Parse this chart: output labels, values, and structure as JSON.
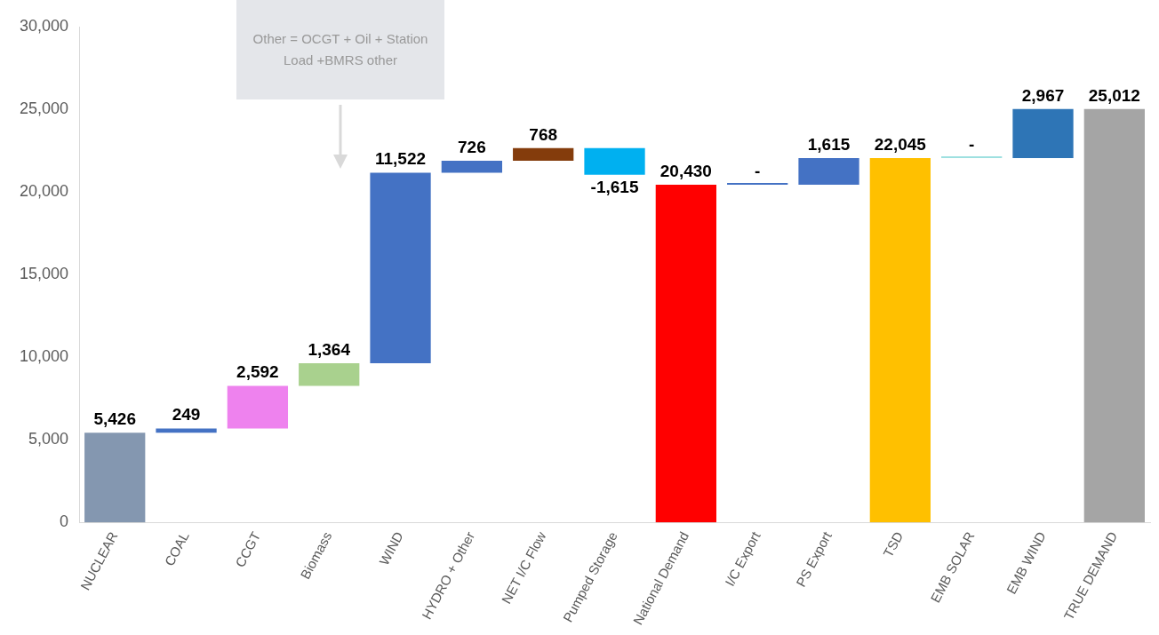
{
  "chart_data": {
    "type": "bar",
    "categories": [
      "NUCLEAR",
      "COAL",
      "CCGT",
      "Biomass",
      "WIND",
      "HYDRO + Other",
      "NET I/C Flow",
      "Pumped Storage",
      "National Demand",
      "I/C Export",
      "PS Export",
      "TSD",
      "EMB SOLAR",
      "EMB WIND",
      "TRUE DEMAND"
    ],
    "values": [
      5426,
      249,
      2592,
      1364,
      11522,
      726,
      768,
      -1615,
      20430,
      0,
      1615,
      22045,
      0,
      2967,
      25012
    ],
    "base": [
      0,
      5426,
      5675,
      8267,
      9631,
      21153,
      21879,
      22647,
      0,
      20430,
      20430,
      0,
      22045,
      22045,
      0
    ],
    "colors": [
      "#8497b0",
      "#4472c4",
      "#ee82ee",
      "#a9d18e",
      "#4472c4",
      "#4472c4",
      "#843c0c",
      "#00b0f0",
      "#ff0000",
      "#4472c4",
      "#4472c4",
      "#ffc000",
      "#9ee0e0",
      "#2e75b6",
      "#a5a5a5"
    ],
    "value_labels": [
      "5,426",
      "249",
      "2,592",
      "1,364",
      "11,522",
      "726",
      "768",
      "-1,615",
      "20,430",
      "-",
      "1,615",
      "22,045",
      "-",
      "2,967",
      "25,012"
    ],
    "ylim": [
      0,
      30000
    ],
    "yticks": [
      {
        "value": 0,
        "label": "0"
      },
      {
        "value": 5000,
        "label": "5,000"
      },
      {
        "value": 10000,
        "label": "10,000"
      },
      {
        "value": 15000,
        "label": "15,000"
      },
      {
        "value": 20000,
        "label": "20,000"
      },
      {
        "value": 25000,
        "label": "25,000"
      },
      {
        "value": 30000,
        "label": "30,000"
      }
    ],
    "grid": false,
    "legend": false,
    "annotations": [
      "Other = OCGT + Oil + Station Load +BMRS other"
    ]
  }
}
